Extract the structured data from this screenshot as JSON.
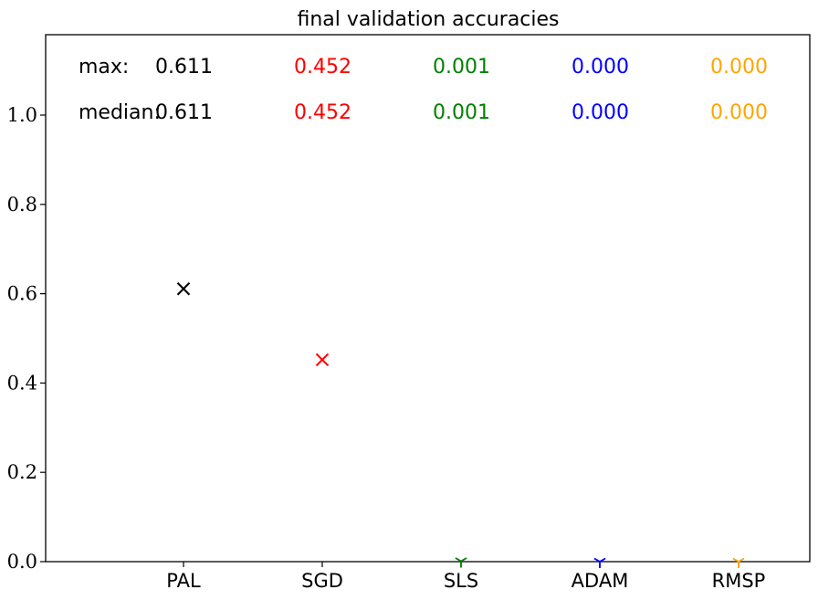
{
  "chart_data": {
    "type": "scatter",
    "title": "final validation accuracies",
    "xlabel": "",
    "ylabel": "",
    "categories": [
      "PAL",
      "SGD",
      "SLS",
      "ADAM",
      "RMSP"
    ],
    "values": [
      0.611,
      0.452,
      0.001,
      0.0,
      0.0
    ],
    "colors": [
      "#000000",
      "#ff0000",
      "#008000",
      "#0000ff",
      "#ffa500"
    ],
    "markers": [
      "x",
      "x",
      "tri_down",
      "tri_down",
      "tri_down"
    ],
    "ylim": [
      0.0,
      1.18
    ],
    "yticks": [
      0.0,
      0.2,
      0.4,
      0.6,
      0.8,
      1.0
    ],
    "ytick_labels": [
      "0.0",
      "0.2",
      "0.4",
      "0.6",
      "0.8",
      "1.0"
    ],
    "stats": {
      "max_label": "max:",
      "median_label": "median:",
      "max_values": [
        "0.611",
        "0.452",
        "0.001",
        "0.000",
        "0.000"
      ],
      "median_values": [
        "0.611",
        "0.452",
        "0.001",
        "0.000",
        "0.000"
      ]
    }
  }
}
